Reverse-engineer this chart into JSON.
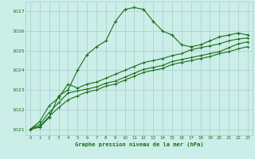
{
  "title": "Graphe pression niveau de la mer (hPa)",
  "bg_color": "#cceee8",
  "grid_color": "#aacccc",
  "line_color": "#1a6e1a",
  "text_color": "#1a6e1a",
  "xlim": [
    -0.5,
    23.5
  ],
  "ylim": [
    1020.7,
    1027.5
  ],
  "yticks": [
    1021,
    1022,
    1023,
    1024,
    1025,
    1026,
    1027
  ],
  "xticks": [
    0,
    1,
    2,
    3,
    4,
    5,
    6,
    7,
    8,
    9,
    10,
    11,
    12,
    13,
    14,
    15,
    16,
    17,
    18,
    19,
    20,
    21,
    22,
    23
  ],
  "series1": [
    1021.0,
    1021.1,
    1021.6,
    1022.7,
    1023.0,
    1024.0,
    1024.8,
    1025.2,
    1025.5,
    1026.5,
    1027.1,
    1027.2,
    1027.1,
    1026.5,
    1026.0,
    1025.8,
    1025.3,
    1025.2,
    1025.3,
    1025.5,
    1025.7,
    1025.8,
    1025.9,
    1025.8
  ],
  "series2": [
    1021.0,
    1021.4,
    1022.2,
    1022.6,
    1023.3,
    1023.1,
    1023.3,
    1023.4,
    1023.6,
    1023.8,
    1024.0,
    1024.2,
    1024.4,
    1024.5,
    1024.6,
    1024.75,
    1024.85,
    1025.05,
    1025.15,
    1025.25,
    1025.35,
    1025.5,
    1025.6,
    1025.65
  ],
  "series3": [
    1021.0,
    1021.25,
    1021.85,
    1022.35,
    1022.85,
    1022.95,
    1023.05,
    1023.15,
    1023.35,
    1023.45,
    1023.65,
    1023.85,
    1024.05,
    1024.15,
    1024.25,
    1024.45,
    1024.55,
    1024.65,
    1024.75,
    1024.85,
    1024.95,
    1025.15,
    1025.35,
    1025.45
  ],
  "series4": [
    1021.0,
    1021.15,
    1021.65,
    1022.1,
    1022.5,
    1022.7,
    1022.9,
    1023.0,
    1023.2,
    1023.3,
    1023.5,
    1023.7,
    1023.9,
    1024.0,
    1024.1,
    1024.3,
    1024.4,
    1024.5,
    1024.6,
    1024.7,
    1024.85,
    1024.95,
    1025.1,
    1025.2
  ]
}
